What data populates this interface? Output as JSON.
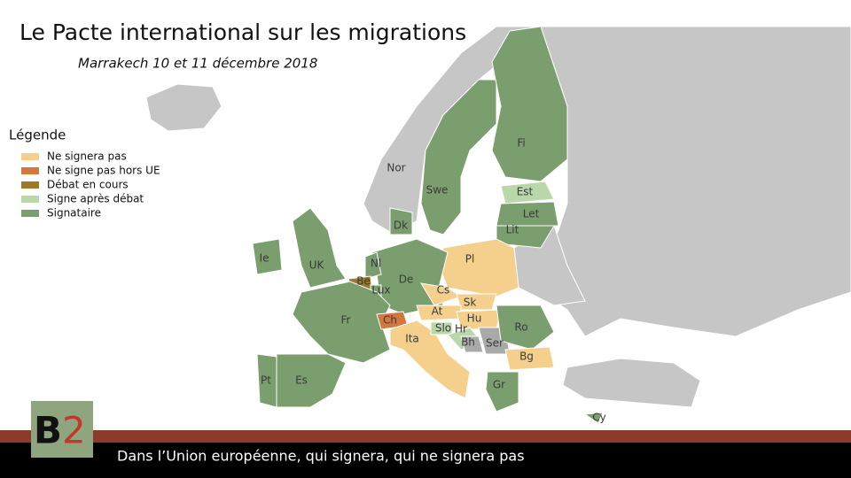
{
  "header": {
    "title": "Le Pacte international sur les migrations",
    "subtitle": "Marrakech 10 et 11 décembre 2018"
  },
  "legend": {
    "title": "Légende",
    "items": [
      {
        "label": "Ne signera pas",
        "color": "#f5cf8c"
      },
      {
        "label": "Ne signe pas hors UE",
        "color": "#d4773f"
      },
      {
        "label": "Débat en cours",
        "color": "#9b7a2a"
      },
      {
        "label": "Signe après débat",
        "color": "#b9d7a8"
      },
      {
        "label": "Signataire",
        "color": "#7a9e6e"
      }
    ]
  },
  "countries": [
    {
      "label": "Nor",
      "color": "#c6c6c6"
    },
    {
      "label": "Swe",
      "color": "#7a9e6e"
    },
    {
      "label": "Fi",
      "color": "#7a9e6e"
    },
    {
      "label": "Est",
      "color": "#b9d7a8"
    },
    {
      "label": "Let",
      "color": "#7a9e6e"
    },
    {
      "label": "Lit",
      "color": "#7a9e6e"
    },
    {
      "label": "Pl",
      "color": "#f5cf8c"
    },
    {
      "label": "De",
      "color": "#7a9e6e"
    },
    {
      "label": "Dk",
      "color": "#7a9e6e"
    },
    {
      "label": "Nl",
      "color": "#7a9e6e"
    },
    {
      "label": "Be",
      "color": "#9b7a2a"
    },
    {
      "label": "Lux",
      "color": "#7a9e6e"
    },
    {
      "label": "Fr",
      "color": "#7a9e6e"
    },
    {
      "label": "Ch",
      "color": "#d4773f"
    },
    {
      "label": "Ita",
      "color": "#f5cf8c"
    },
    {
      "label": "Es",
      "color": "#7a9e6e"
    },
    {
      "label": "Pt",
      "color": "#7a9e6e"
    },
    {
      "label": "UK",
      "color": "#7a9e6e"
    },
    {
      "label": "Ie",
      "color": "#7a9e6e"
    },
    {
      "label": "Cs",
      "color": "#f5cf8c"
    },
    {
      "label": "Sk",
      "color": "#f5cf8c"
    },
    {
      "label": "At",
      "color": "#f5cf8c"
    },
    {
      "label": "Hu",
      "color": "#f5cf8c"
    },
    {
      "label": "Slo",
      "color": "#b9d7a8"
    },
    {
      "label": "Hr",
      "color": "#b9d7a8"
    },
    {
      "label": "Bh",
      "color": "#a9a9a9"
    },
    {
      "label": "Ser",
      "color": "#a9a9a9"
    },
    {
      "label": "Ro",
      "color": "#7a9e6e"
    },
    {
      "label": "Bg",
      "color": "#f5cf8c"
    },
    {
      "label": "Gr",
      "color": "#7a9e6e"
    },
    {
      "label": "Cy",
      "color": "#7a9e6e"
    }
  ],
  "logo": {
    "letter": "B",
    "digit": "2"
  },
  "footer": {
    "text": "Dans l’Union européenne, qui signera, qui ne signera pas"
  }
}
